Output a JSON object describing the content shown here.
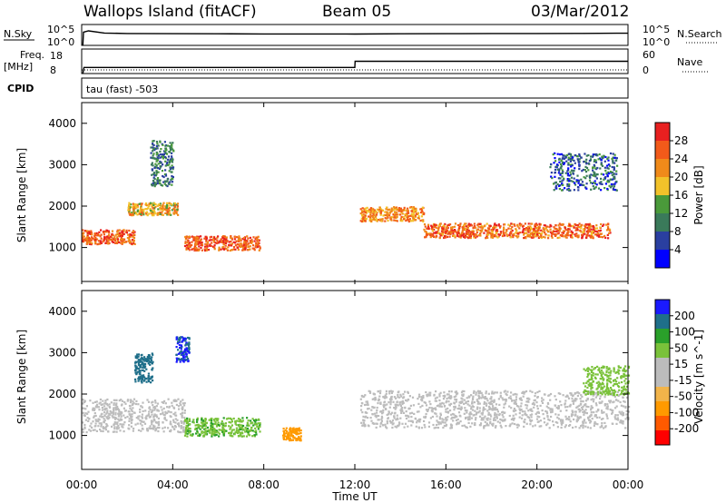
{
  "header": {
    "station": "Wallops Island (fitACF)",
    "beam": "Beam 05",
    "date": "03/Mar/2012"
  },
  "strip_labels": {
    "n_sky": "N.Sky",
    "n_sky_high": "10^5",
    "n_sky_low": "10^0",
    "n_search": "N.Search",
    "freq_top": "Freq.",
    "freq_unit": "[MHz]",
    "freq_high": "18",
    "freq_low": "8",
    "nave": "Nave",
    "nave_high": "60",
    "nave_low": "0",
    "cpid_label": "CPID",
    "cpid_value": "tau (fast) -503"
  },
  "colors": {
    "frame": "#000000",
    "power_scale": [
      "#0000ff",
      "#2a3fa0",
      "#3a7a5a",
      "#4a9a3a",
      "#f2c22a",
      "#f08a1a",
      "#f25a1a",
      "#e82020"
    ],
    "velocity_scale": [
      "#ff0000",
      "#ff5a00",
      "#ff9a00",
      "#f2b44a",
      "#bcbcbc",
      "#bcbcbc",
      "#7ac23a",
      "#2aa02a",
      "#1f6f8a",
      "#1a1aff"
    ]
  },
  "chart_data": [
    {
      "type": "line",
      "name": "N.Sky / N.Search",
      "x_unit": "hours UT",
      "y_scale": "log",
      "ylim": [
        1,
        100000
      ],
      "x": [
        0.05,
        0.08,
        0.3,
        1,
        2,
        4,
        6,
        8,
        10,
        12,
        14,
        16,
        18,
        20,
        22,
        23.5,
        24
      ],
      "y": [
        1,
        1500,
        3000,
        900,
        700,
        650,
        600,
        550,
        550,
        520,
        600,
        650,
        700,
        720,
        750,
        800,
        800
      ]
    },
    {
      "type": "line",
      "name": "Frequency",
      "x_unit": "hours UT",
      "ylabel": "[MHz]",
      "ylim": [
        8,
        18
      ],
      "x": [
        0.05,
        0.1,
        12,
        12.01,
        24
      ],
      "y": [
        8,
        10.5,
        10.5,
        13.0,
        13.0
      ]
    },
    {
      "type": "heatmap",
      "name": "Power",
      "title": "",
      "xlabel": "Time UT",
      "ylabel": "Slant Range [km]",
      "colorbar_label": "Power [dB]",
      "colorbar_ticks": [
        "28",
        "24",
        "20",
        "16",
        "12",
        "8",
        "4"
      ],
      "x_ticks": [
        "00:00",
        "04:00",
        "08:00",
        "12:00",
        "16:00",
        "20:00",
        "00:00"
      ],
      "y_ticks": [
        "1000",
        "2000",
        "3000",
        "4000"
      ],
      "xlim_hours": [
        0,
        24
      ],
      "ylim_km": [
        180,
        4500
      ],
      "regions_hours_km": [
        {
          "t0": 0.0,
          "t1": 2.3,
          "r0": 1100,
          "r1": 1450,
          "power_db": 26
        },
        {
          "t0": 2.0,
          "t1": 4.2,
          "r0": 1800,
          "r1": 2100,
          "power_db": 20
        },
        {
          "t0": 4.5,
          "t1": 7.8,
          "r0": 950,
          "r1": 1300,
          "power_db": 26
        },
        {
          "t0": 12.2,
          "t1": 15.0,
          "r0": 1650,
          "r1": 2000,
          "power_db": 22
        },
        {
          "t0": 15.0,
          "t1": 23.2,
          "r0": 1250,
          "r1": 1600,
          "power_db": 25
        },
        {
          "t0": 3.0,
          "t1": 4.0,
          "r0": 2500,
          "r1": 3600,
          "power_db": 10
        },
        {
          "t0": 20.5,
          "t1": 23.5,
          "r0": 2400,
          "r1": 3300,
          "power_db": 8
        }
      ]
    },
    {
      "type": "heatmap",
      "name": "Velocity",
      "title": "",
      "xlabel": "Time UT",
      "ylabel": "Slant Range [km]",
      "colorbar_label": "Velocity [m s^-1]",
      "colorbar_ticks": [
        "200",
        "100",
        "50",
        "15",
        "-15",
        "-50",
        "-100",
        "-200"
      ],
      "x_ticks": [
        "00:00",
        "04:00",
        "08:00",
        "12:00",
        "16:00",
        "20:00",
        "00:00"
      ],
      "y_ticks": [
        "1000",
        "2000",
        "3000",
        "4000"
      ],
      "xlim_hours": [
        0,
        24
      ],
      "ylim_km": [
        180,
        4500
      ],
      "regions_hours_km": [
        {
          "t0": 0.0,
          "t1": 4.5,
          "r0": 1100,
          "r1": 1900,
          "velocity": 0
        },
        {
          "t0": 4.5,
          "t1": 7.8,
          "r0": 1000,
          "r1": 1450,
          "velocity": 45
        },
        {
          "t0": 2.3,
          "t1": 3.1,
          "r0": 2300,
          "r1": 3000,
          "velocity": 180
        },
        {
          "t0": 4.1,
          "t1": 4.7,
          "r0": 2800,
          "r1": 3400,
          "velocity": 200
        },
        {
          "t0": 8.8,
          "t1": 9.6,
          "r0": 900,
          "r1": 1200,
          "velocity": -60
        },
        {
          "t0": 12.2,
          "t1": 24.0,
          "r0": 1200,
          "r1": 2100,
          "velocity": 0
        },
        {
          "t0": 22.0,
          "t1": 24.0,
          "r0": 2000,
          "r1": 2700,
          "velocity": 30
        }
      ]
    }
  ]
}
